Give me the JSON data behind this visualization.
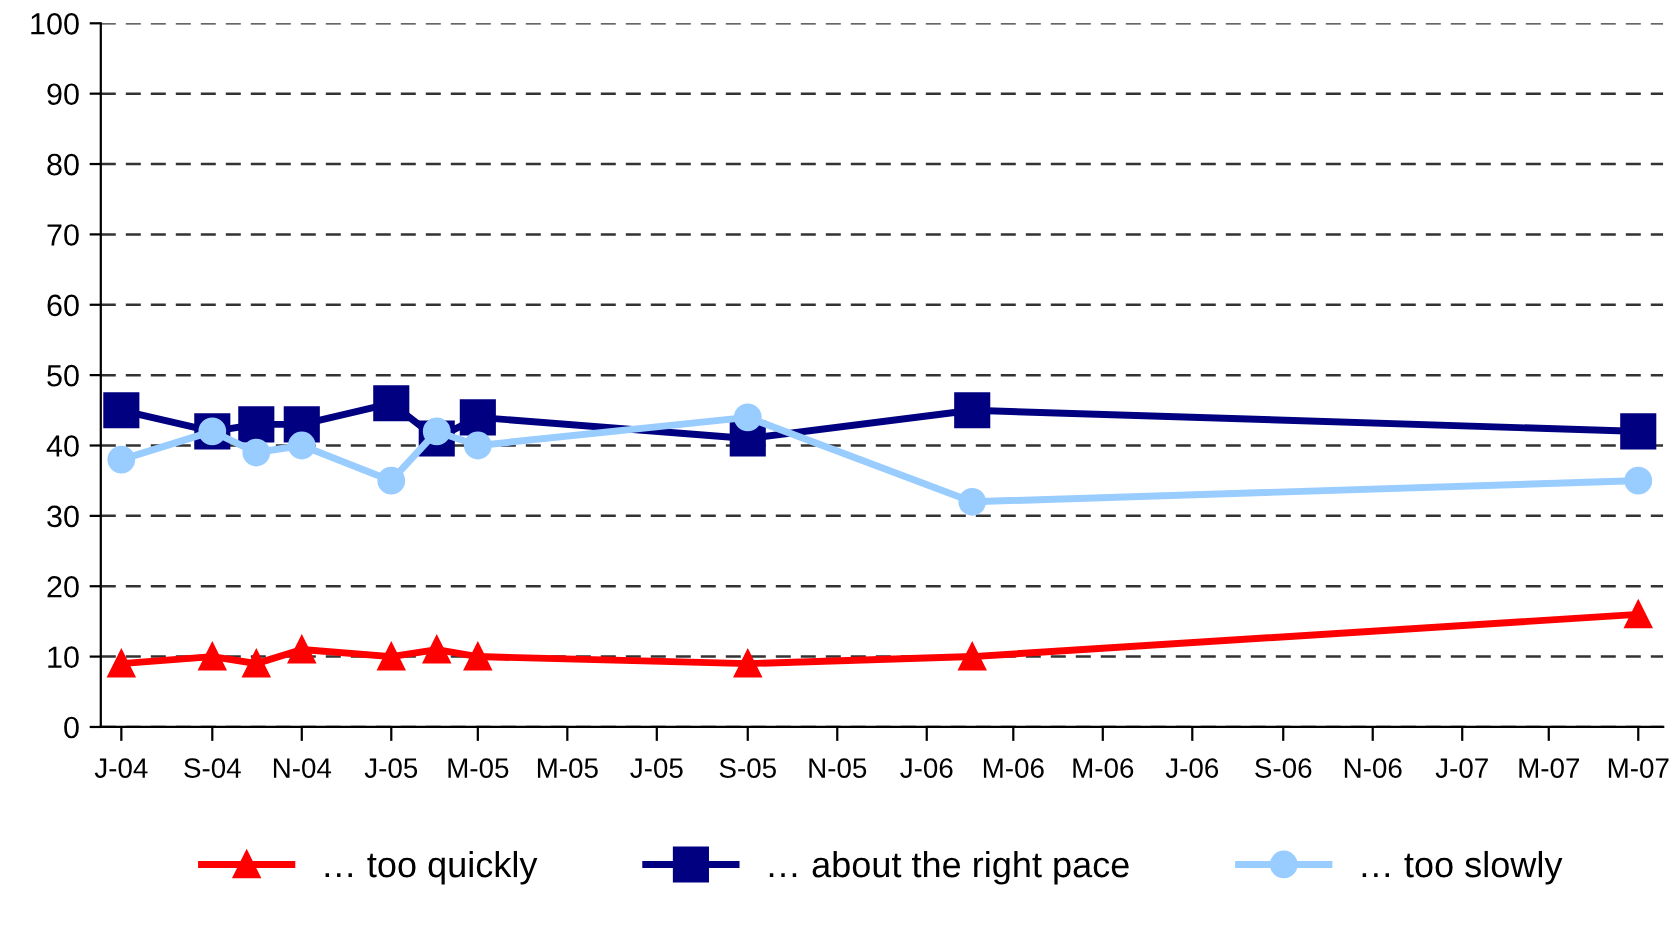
{
  "chart_data": {
    "type": "line",
    "x": [
      "2004-07-15",
      "2004-09-15",
      "2004-10-15",
      "2004-11-15",
      "2005-01-15",
      "2005-02-15",
      "2005-03-15",
      "2005-09-15",
      "2006-02-15",
      "2007-05-15"
    ],
    "series": [
      {
        "name": "… too quickly",
        "color": "#ff0000",
        "marker": "triangle",
        "values": [
          9,
          10,
          9,
          11,
          10,
          11,
          10,
          9,
          10,
          16
        ]
      },
      {
        "name": "… about the right pace",
        "color": "#000080",
        "marker": "square",
        "values": [
          45,
          42,
          43,
          43,
          46,
          41,
          44,
          41,
          45,
          42
        ]
      },
      {
        "name": "… too slowly",
        "color": "#99ccff",
        "marker": "circle",
        "values": [
          38,
          42,
          39,
          40,
          35,
          42,
          40,
          44,
          32,
          35
        ]
      }
    ],
    "xlim": [
      "2004-07-01",
      "2007-06-01"
    ],
    "xticks": [
      {
        "value": "2004-07-15",
        "label": "J-04"
      },
      {
        "value": "2004-09-15",
        "label": "S-04"
      },
      {
        "value": "2004-11-15",
        "label": "N-04"
      },
      {
        "value": "2005-01-15",
        "label": "J-05"
      },
      {
        "value": "2005-03-15",
        "label": "M-05"
      },
      {
        "value": "2005-05-15",
        "label": "M-05"
      },
      {
        "value": "2005-07-15",
        "label": "J-05"
      },
      {
        "value": "2005-09-15",
        "label": "S-05"
      },
      {
        "value": "2005-11-15",
        "label": "N-05"
      },
      {
        "value": "2006-01-15",
        "label": "J-06"
      },
      {
        "value": "2006-03-15",
        "label": "M-06"
      },
      {
        "value": "2006-05-15",
        "label": "M-06"
      },
      {
        "value": "2006-07-15",
        "label": "J-06"
      },
      {
        "value": "2006-09-15",
        "label": "S-06"
      },
      {
        "value": "2006-11-15",
        "label": "N-06"
      },
      {
        "value": "2007-01-15",
        "label": "J-07"
      },
      {
        "value": "2007-03-15",
        "label": "M-07"
      },
      {
        "value": "2007-05-15",
        "label": "M-07"
      }
    ],
    "ylim": [
      0,
      100
    ],
    "yticks": [
      0,
      10,
      20,
      30,
      40,
      50,
      60,
      70,
      80,
      90,
      100
    ],
    "grid": "y",
    "line_style": "solid",
    "legend": "bottom"
  }
}
